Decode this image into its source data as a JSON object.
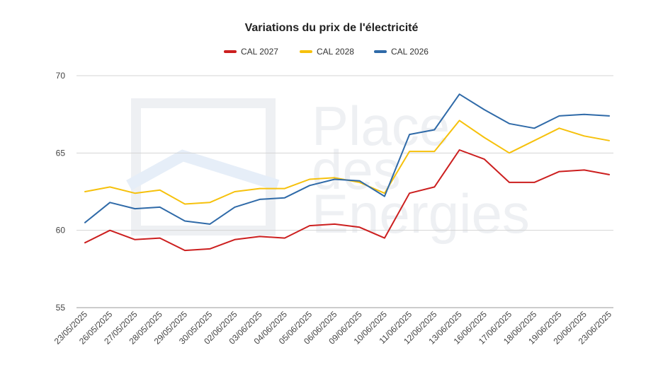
{
  "chart_data": {
    "type": "line",
    "title": "Variations du prix de l'électricité",
    "watermark": [
      "Place",
      "des",
      "Energies"
    ],
    "categories": [
      "23/05/2025",
      "26/05/2025",
      "27/05/2025",
      "28/05/2025",
      "29/05/2025",
      "30/05/2025",
      "02/06/2025",
      "03/06/2025",
      "04/06/2025",
      "05/06/2025",
      "06/06/2025",
      "09/06/2025",
      "10/06/2025",
      "11/06/2025",
      "12/06/2025",
      "13/06/2025",
      "16/06/2025",
      "17/06/2025",
      "18/06/2025",
      "19/06/2025",
      "20/06/2025",
      "23/06/2025"
    ],
    "series": [
      {
        "name": "CAL 2027",
        "color": "#cc1f1f",
        "values": [
          59.2,
          60.0,
          59.4,
          59.5,
          58.7,
          58.8,
          59.4,
          59.6,
          59.5,
          60.3,
          60.4,
          60.2,
          59.5,
          62.4,
          62.8,
          65.2,
          64.6,
          63.1,
          63.1,
          63.8,
          63.9,
          63.6
        ]
      },
      {
        "name": "CAL 2028",
        "color": "#f6c10c",
        "values": [
          62.5,
          62.8,
          62.4,
          62.6,
          61.7,
          61.8,
          62.5,
          62.7,
          62.7,
          63.3,
          63.4,
          63.1,
          62.4,
          65.1,
          65.1,
          67.1,
          66.0,
          65.0,
          65.8,
          66.6,
          66.1,
          65.8
        ]
      },
      {
        "name": "CAL 2026",
        "color": "#2f6aa8",
        "values": [
          60.5,
          61.8,
          61.4,
          61.5,
          60.6,
          60.4,
          61.5,
          62.0,
          62.1,
          62.9,
          63.3,
          63.2,
          62.2,
          66.2,
          66.5,
          68.8,
          67.8,
          66.9,
          66.6,
          67.4,
          67.5,
          67.4
        ]
      }
    ],
    "yticks": [
      "55",
      "60",
      "65",
      "70"
    ],
    "ylim": [
      55,
      70
    ],
    "xlabel": "",
    "ylabel": "",
    "grid": true,
    "legend": "top-center"
  }
}
